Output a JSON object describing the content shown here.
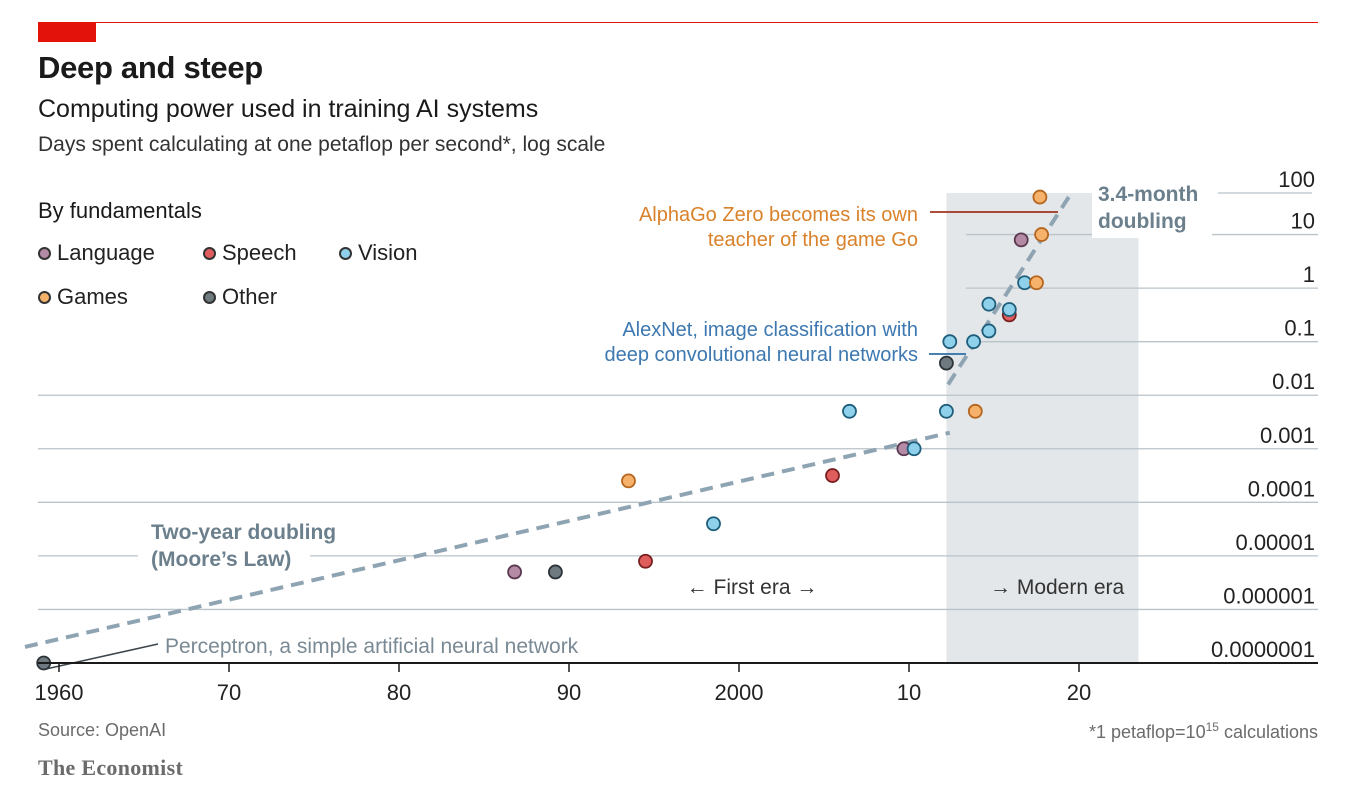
{
  "header": {
    "title": "Deep and steep",
    "subtitle": "Computing power used in training AI systems",
    "description": "Days spent calculating at one petaflop per second*, log scale"
  },
  "legend": {
    "title": "By fundamentals",
    "items": [
      {
        "label": "Language",
        "color": "#b58aa5"
      },
      {
        "label": "Speech",
        "color": "#e05d5d"
      },
      {
        "label": "Vision",
        "color": "#8fd0ea"
      },
      {
        "label": "Games",
        "color": "#f6b26b"
      },
      {
        "label": "Other",
        "color": "#6e7a80"
      }
    ]
  },
  "chart_data": {
    "type": "scatter",
    "xlim": [
      1958,
      2030
    ],
    "ylim_exp": [
      -7,
      2
    ],
    "y_scale": "log",
    "x_ticks": [
      {
        "value": 1960,
        "label": "1960"
      },
      {
        "value": 1970,
        "label": "70"
      },
      {
        "value": 1980,
        "label": "80"
      },
      {
        "value": 1990,
        "label": "90"
      },
      {
        "value": 2000,
        "label": "2000"
      },
      {
        "value": 2010,
        "label": "10"
      },
      {
        "value": 2020,
        "label": "20"
      }
    ],
    "y_ticks": [
      {
        "exp": 2,
        "label": "100"
      },
      {
        "exp": 1,
        "label": "10"
      },
      {
        "exp": 0,
        "label": "1"
      },
      {
        "exp": -1,
        "label": "0.1"
      },
      {
        "exp": -2,
        "label": "0.01"
      },
      {
        "exp": -3,
        "label": "0.001"
      },
      {
        "exp": -4,
        "label": "0.0001"
      },
      {
        "exp": -5,
        "label": "0.00001"
      },
      {
        "exp": -6,
        "label": "0.000001"
      },
      {
        "exp": -7,
        "label": "0.0000001"
      }
    ],
    "points": [
      {
        "x": 1959.1,
        "y_exp": -7.0,
        "cat": "Other"
      },
      {
        "x": 1986.8,
        "y_exp": -5.3,
        "cat": "Language"
      },
      {
        "x": 1989.2,
        "y_exp": -5.3,
        "cat": "Other"
      },
      {
        "x": 1993.5,
        "y_exp": -3.6,
        "cat": "Games"
      },
      {
        "x": 1994.5,
        "y_exp": -5.1,
        "cat": "Speech"
      },
      {
        "x": 1998.5,
        "y_exp": -4.4,
        "cat": "Vision"
      },
      {
        "x": 2005.5,
        "y_exp": -3.5,
        "cat": "Speech"
      },
      {
        "x": 2006.5,
        "y_exp": -2.3,
        "cat": "Vision"
      },
      {
        "x": 2009.7,
        "y_exp": -3.0,
        "cat": "Language"
      },
      {
        "x": 2010.3,
        "y_exp": -3.0,
        "cat": "Vision"
      },
      {
        "x": 2012.2,
        "y_exp": -2.3,
        "cat": "Vision"
      },
      {
        "x": 2012.2,
        "y_exp": -1.4,
        "cat": "Other"
      },
      {
        "x": 2012.4,
        "y_exp": -1.0,
        "cat": "Vision"
      },
      {
        "x": 2013.9,
        "y_exp": -2.3,
        "cat": "Games"
      },
      {
        "x": 2014.7,
        "y_exp": -0.8,
        "cat": "Vision"
      },
      {
        "x": 2013.8,
        "y_exp": -1.0,
        "cat": "Vision"
      },
      {
        "x": 2014.7,
        "y_exp": -0.3,
        "cat": "Vision"
      },
      {
        "x": 2015.9,
        "y_exp": -0.5,
        "cat": "Speech"
      },
      {
        "x": 2015.9,
        "y_exp": -0.4,
        "cat": "Vision"
      },
      {
        "x": 2016.8,
        "y_exp": 0.1,
        "cat": "Vision"
      },
      {
        "x": 2016.6,
        "y_exp": 0.9,
        "cat": "Language"
      },
      {
        "x": 2017.5,
        "y_exp": 0.1,
        "cat": "Games"
      },
      {
        "x": 2017.8,
        "y_exp": 1.0,
        "cat": "Games"
      },
      {
        "x": 2017.7,
        "y_exp": 1.7,
        "cat": "Games"
      }
    ],
    "trend_lines": [
      {
        "name": "Two-year doubling (Moore's Law)",
        "x": [
          1958,
          2012.4
        ],
        "y_exp": [
          -6.7,
          -2.7
        ]
      },
      {
        "name": "3.4-month doubling",
        "x": [
          2012.3,
          2019.6
        ],
        "y_exp": [
          -1.8,
          1.8
        ]
      }
    ],
    "modern_era_span": [
      2012.2,
      2023.5
    ],
    "era_labels": {
      "first": "← First era →",
      "modern": "→ Modern era"
    },
    "annotations": {
      "moore_line1": "Two-year doubling",
      "moore_line2": "(Moore’s Law)",
      "fast_line1": "3.4-month",
      "fast_line2": "doubling",
      "alphago_line1": "AlphaGo Zero becomes its own",
      "alphago_line2": "teacher of the game Go",
      "alexnet_line1": "AlexNet, image classification with",
      "alexnet_line2": "deep convolutional neural networks",
      "perceptron": "Perceptron, a simple artificial neural network"
    }
  },
  "footer": {
    "source": "Source: OpenAI",
    "footnote_main": "*1 petaflop=10",
    "footnote_sup": "15",
    "footnote_end": " calculations",
    "brand": "The Economist"
  }
}
